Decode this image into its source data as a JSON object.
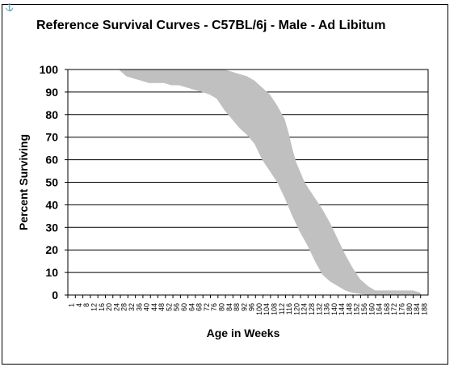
{
  "chart_data": {
    "type": "area",
    "title": "Reference Survival Curves - C57BL/6j - Male - Ad Libitum",
    "xlabel": "Age in Weeks",
    "ylabel": "Percent Surviving",
    "x_tick_labels": [
      "1",
      "4",
      "8",
      "12",
      "16",
      "20",
      "24",
      "28",
      "32",
      "36",
      "40",
      "44",
      "48",
      "52",
      "56",
      "60",
      "64",
      "68",
      "72",
      "76",
      "80",
      "84",
      "88",
      "92",
      "96",
      "100",
      "104",
      "108",
      "112",
      "116",
      "120",
      "124",
      "128",
      "132",
      "136",
      "140",
      "144",
      "148",
      "152",
      "156",
      "160",
      "164",
      "168",
      "172",
      "176",
      "180",
      "184",
      "188"
    ],
    "y_ticks": [
      0,
      10,
      20,
      30,
      40,
      50,
      60,
      70,
      80,
      90,
      100
    ],
    "ylim": [
      0,
      100
    ],
    "xlim": [
      1,
      192
    ],
    "grid": "horizontal",
    "legend": "none",
    "fill_color": "#c0c0c0",
    "series": [
      {
        "role": "upper-bound",
        "x": [
          68,
          76,
          84,
          88,
          92,
          96,
          100,
          104,
          108,
          112,
          116,
          118,
          120,
          122,
          124,
          126,
          128,
          132,
          136,
          140,
          144,
          148,
          152,
          156,
          160,
          162,
          164,
          168,
          172,
          176,
          180,
          184,
          188
        ],
        "y": [
          100,
          100,
          100,
          99,
          98,
          97,
          95,
          92,
          89,
          84,
          78,
          72,
          65,
          59,
          55,
          51,
          48,
          43,
          38,
          32,
          25,
          18,
          12,
          7,
          4,
          3,
          2,
          2,
          2,
          2,
          2,
          2,
          1
        ]
      },
      {
        "role": "lower-bound",
        "x": [
          28,
          32,
          36,
          40,
          44,
          48,
          52,
          56,
          60,
          64,
          68,
          72,
          76,
          80,
          84,
          88,
          92,
          96,
          100,
          104,
          108,
          112,
          116,
          120,
          124,
          128,
          132,
          136,
          140,
          144,
          148,
          152,
          156,
          160,
          164,
          168,
          172,
          176,
          180,
          184,
          188
        ],
        "y": [
          100,
          97,
          96,
          95,
          94,
          94,
          94,
          93,
          93,
          92,
          91,
          90,
          89,
          87,
          82,
          78,
          74,
          71,
          67,
          60,
          55,
          50,
          43,
          35,
          28,
          22,
          15,
          9,
          6,
          4,
          2,
          1,
          0.5,
          0,
          0,
          0,
          0,
          0,
          0,
          0,
          0
        ]
      }
    ]
  }
}
